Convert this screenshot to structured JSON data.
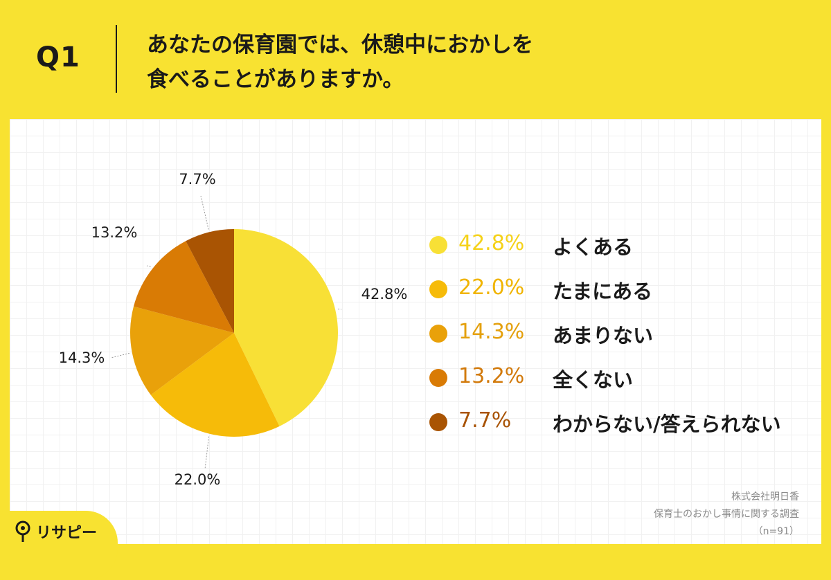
{
  "header": {
    "q_label": "Q1",
    "question_line1": "あなたの保育園では、休憩中におかしを",
    "question_line2": "食べることがありますか。"
  },
  "chart_data": {
    "type": "pie",
    "title": "",
    "slices": [
      {
        "label": "よくある",
        "value": 42.8,
        "display": "42.8%",
        "color": "#f8e036"
      },
      {
        "label": "たまにある",
        "value": 22.0,
        "display": "22.0%",
        "color": "#f6bb09"
      },
      {
        "label": "あまりない",
        "value": 14.3,
        "display": "14.3%",
        "color": "#e9a10a"
      },
      {
        "label": "全くない",
        "value": 13.2,
        "display": "13.2%",
        "color": "#d97b05"
      },
      {
        "label": "わからない/答えられない",
        "value": 7.7,
        "display": "7.7%",
        "color": "#a95403"
      }
    ],
    "start": "12 o'clock",
    "direction": "clockwise",
    "legend_position": "right"
  },
  "legend_pct_colors": [
    "#f5d21a",
    "#f0b400",
    "#e4a00d",
    "#d27a0c",
    "#a85304"
  ],
  "source": {
    "company": "株式会社明日香",
    "survey": "保育士のおかし事情に関する調査",
    "sample": "（n=91）"
  },
  "logo": {
    "text": "リサピー",
    "icon": "map-pin-icon"
  }
}
